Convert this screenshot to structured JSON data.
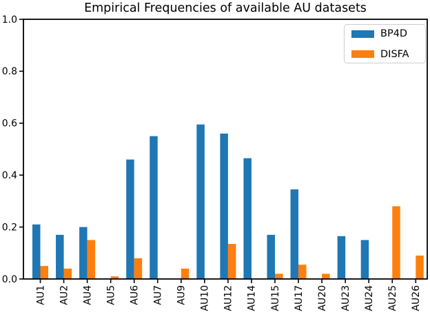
{
  "chart_data": {
    "type": "bar",
    "title": "Empirical Frequencies of available AU datasets",
    "xlabel": "",
    "ylabel": "",
    "categories": [
      "AU1",
      "AU2",
      "AU4",
      "AU5",
      "AU6",
      "AU7",
      "AU9",
      "AU10",
      "AU12",
      "AU14",
      "AU15",
      "AU17",
      "AU20",
      "AU23",
      "AU24",
      "AU25",
      "AU26"
    ],
    "series": [
      {
        "name": "BP4D",
        "color": "#1f77b4",
        "values": [
          0.21,
          0.17,
          0.2,
          0.0,
          0.46,
          0.55,
          0.0,
          0.595,
          0.56,
          0.465,
          0.17,
          0.345,
          0.0,
          0.165,
          0.15,
          0.0,
          0.0
        ]
      },
      {
        "name": "DISFA",
        "color": "#ff7f0e",
        "values": [
          0.05,
          0.04,
          0.15,
          0.01,
          0.08,
          0.0,
          0.04,
          0.0,
          0.135,
          0.0,
          0.02,
          0.055,
          0.02,
          0.0,
          0.0,
          0.28,
          0.09
        ]
      }
    ],
    "ylim": [
      0.0,
      1.0
    ],
    "yticks": [
      "0.0",
      "0.2",
      "0.4",
      "0.6",
      "0.8",
      "1.0"
    ],
    "xtick_rotation": 90,
    "grid": false,
    "legend_position": "upper right",
    "spine_color": "#000000",
    "background_color": "#ffffff"
  }
}
